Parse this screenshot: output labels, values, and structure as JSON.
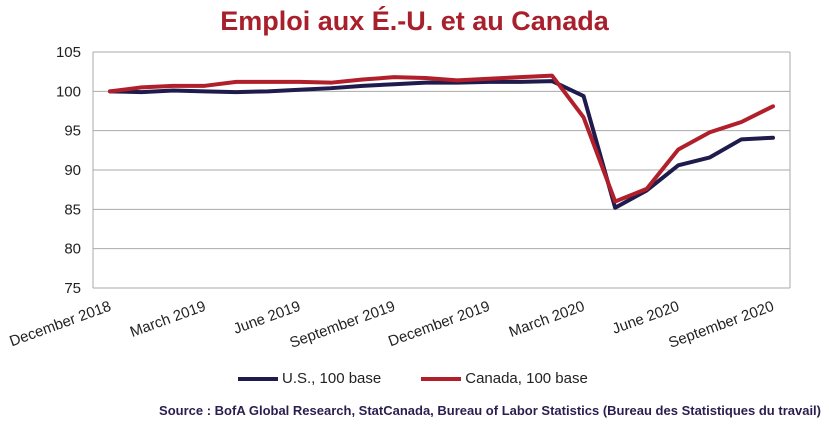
{
  "chart_data": {
    "type": "line",
    "title": "Emploi aux É.-U. et au Canada",
    "xlabel": "",
    "ylabel": "",
    "ylim": [
      75,
      105
    ],
    "yticks": [
      "75",
      "80",
      "85",
      "90",
      "95",
      "100",
      "105"
    ],
    "x": [
      "Dec 2018",
      "Jan 2019",
      "Feb 2019",
      "Mar 2019",
      "Apr 2019",
      "May 2019",
      "Jun 2019",
      "Jul 2019",
      "Aug 2019",
      "Sep 2019",
      "Oct 2019",
      "Nov 2019",
      "Dec 2019",
      "Jan 2020",
      "Feb 2020",
      "Mar 2020",
      "Apr 2020",
      "May 2020",
      "Jun 2020",
      "Jul 2020",
      "Aug 2020",
      "Sep 2020"
    ],
    "xtick_labels": [
      {
        "index": 0,
        "label": "December 2018"
      },
      {
        "index": 3,
        "label": "March 2019"
      },
      {
        "index": 6,
        "label": "June 2019"
      },
      {
        "index": 9,
        "label": "September 2019"
      },
      {
        "index": 12,
        "label": "December 2019"
      },
      {
        "index": 15,
        "label": "March 2020"
      },
      {
        "index": 18,
        "label": "June 2020"
      },
      {
        "index": 21,
        "label": "September 2020"
      }
    ],
    "grid": true,
    "legend_position": "bottom",
    "series": [
      {
        "name": "U.S., 100 base",
        "color": "#1f1b4d",
        "values": [
          100,
          99.9,
          100.1,
          100.0,
          99.9,
          100.0,
          100.2,
          100.4,
          100.7,
          100.9,
          101.1,
          101.1,
          101.2,
          101.2,
          101.3,
          99.4,
          85.2,
          87.4,
          90.6,
          91.6,
          93.9,
          94.1
        ]
      },
      {
        "name": "Canada, 100 base",
        "color": "#b01f2a",
        "values": [
          100,
          100.5,
          100.7,
          100.7,
          101.2,
          101.2,
          101.2,
          101.1,
          101.5,
          101.8,
          101.7,
          101.4,
          101.6,
          101.8,
          102.0,
          96.7,
          86.0,
          87.6,
          92.6,
          94.8,
          96.1,
          98.1
        ]
      }
    ]
  },
  "source": "Source : BofA Global Research, StatCanada, Bureau of Labor Statistics (Bureau des Statistiques du travail)"
}
